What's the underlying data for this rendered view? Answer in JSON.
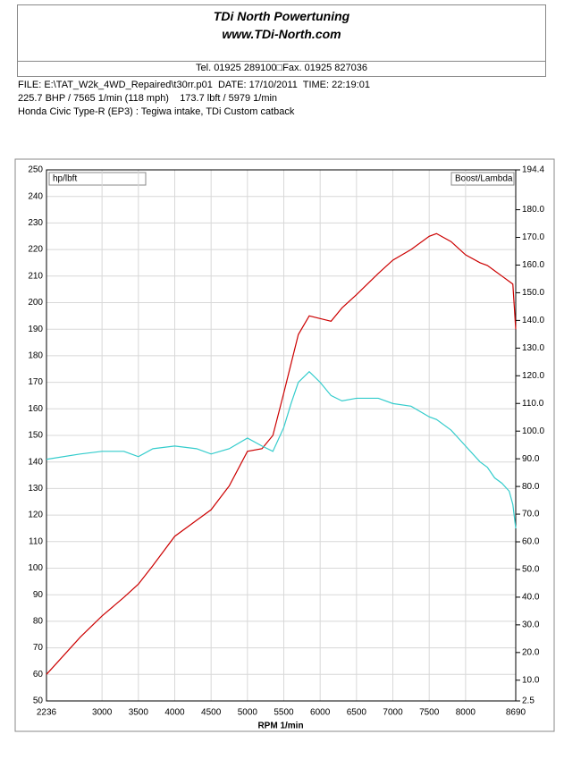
{
  "header": {
    "company": "TDi North Powertuning",
    "website": "www.TDi-North.com",
    "contact": "Tel. 01925 289100□Fax. 01925 827036",
    "info": [
      "FILE: E:\\TAT_W2k_4WD_Repaired\\t30rr.p01  DATE: 17/10/2011  TIME: 22:19:01",
      "225.7 BHP / 7565 1/min (118 mph)    173.7 lbft / 5979 1/min",
      "Honda Civic Type-R (EP3) : Tegiwa intake, TDi Custom catback"
    ]
  },
  "chart_data": {
    "type": "line",
    "x_label": "RPM  1/min",
    "y_label": "hp/lbft",
    "y2_label": "Boost/Lambda",
    "x": [
      2236,
      2700,
      3000,
      3300,
      3500,
      3700,
      4000,
      4300,
      4500,
      4750,
      5000,
      5200,
      5350,
      5500,
      5600,
      5700,
      5850,
      6000,
      6150,
      6300,
      6500,
      6800,
      7000,
      7250,
      7500,
      7600,
      7800,
      8000,
      8200,
      8300,
      8400,
      8500,
      8600,
      8650,
      8690
    ],
    "series": [
      {
        "name": "hp",
        "color": "#cc0000",
        "values": [
          60,
          74,
          82,
          89,
          94,
          101,
          112,
          118,
          122,
          131,
          144,
          145,
          150,
          166,
          177,
          188,
          195,
          194,
          193,
          198,
          203,
          211,
          216,
          220,
          225,
          226,
          223,
          218,
          215,
          214,
          212,
          210,
          208,
          207,
          190
        ]
      },
      {
        "name": "lbft",
        "color": "#33cccc",
        "values": [
          141,
          143,
          144,
          144,
          142,
          145,
          146,
          145,
          143,
          145,
          149,
          146,
          144,
          153,
          162,
          170,
          174,
          170,
          165,
          163,
          164,
          164,
          162,
          161,
          157,
          156,
          152,
          146,
          140,
          138,
          134,
          132,
          129,
          124,
          115
        ]
      }
    ],
    "xlim": [
      2236,
      8690
    ],
    "xticks": [
      2236,
      3000,
      3500,
      4000,
      4500,
      5000,
      5500,
      6000,
      6500,
      7000,
      7500,
      8000,
      8690
    ],
    "ylim": [
      50,
      250
    ],
    "yticks": [
      50,
      60,
      70,
      80,
      90,
      100,
      110,
      120,
      130,
      140,
      150,
      160,
      170,
      180,
      190,
      200,
      210,
      220,
      230,
      240,
      250
    ],
    "y2lim": [
      2.5,
      194.4
    ],
    "y2ticks": [
      2.5,
      {
        "value": 10,
        "label": "10.0"
      },
      {
        "value": 20,
        "label": "20.0"
      },
      {
        "value": 30,
        "label": "30.0"
      },
      {
        "value": 40,
        "label": "40.0"
      },
      {
        "value": 50,
        "label": "50.0"
      },
      {
        "value": 60,
        "label": "60.0"
      },
      {
        "value": 70,
        "label": "70.0"
      },
      {
        "value": 80,
        "label": "80.0"
      },
      {
        "value": 90,
        "label": "90.0"
      },
      {
        "value": 100,
        "label": "100.0"
      },
      {
        "value": 110,
        "label": "110.0"
      },
      {
        "value": 120,
        "label": "120.0"
      },
      {
        "value": 130,
        "label": "130.0"
      },
      {
        "value": 140,
        "label": "140.0"
      },
      {
        "value": 150,
        "label": "150.0"
      },
      {
        "value": 160,
        "label": "160.0"
      },
      {
        "value": 170,
        "label": "170.0"
      },
      {
        "value": 180,
        "label": "180.0"
      },
      194.4
    ],
    "grid": true
  }
}
